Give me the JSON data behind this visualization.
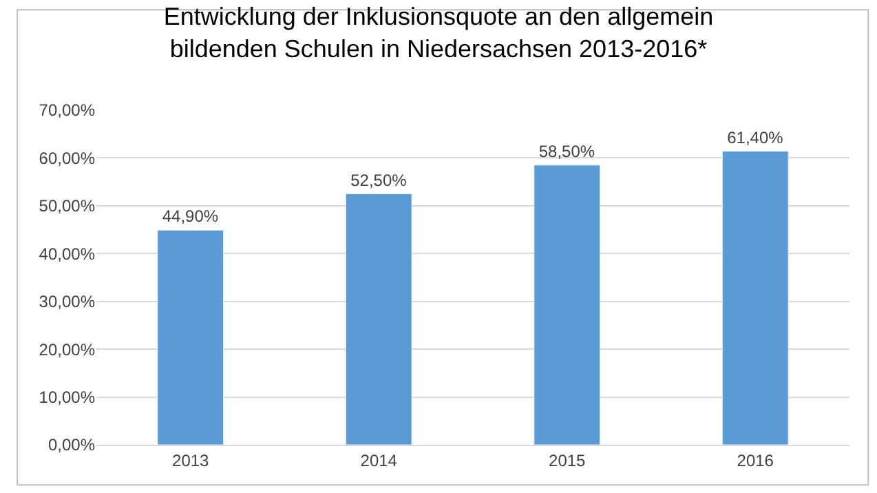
{
  "chart_data": {
    "type": "bar",
    "title": "Entwicklung der Inklusionsquote an den allgemein\nbildenden Schulen in Niedersachsen 2013-2016*",
    "categories": [
      "2013",
      "2014",
      "2015",
      "2016"
    ],
    "values": [
      44.9,
      52.5,
      58.5,
      61.4
    ],
    "value_labels": [
      "44,90%",
      "52,50%",
      "58,50%",
      "61,40%"
    ],
    "color": "#5b9bd5",
    "ylim": [
      0,
      70
    ],
    "yticks": [
      {
        "value": 0,
        "label": "0,00%"
      },
      {
        "value": 10,
        "label": "10,00%"
      },
      {
        "value": 20,
        "label": "20,00%"
      },
      {
        "value": 30,
        "label": "30,00%"
      },
      {
        "value": 40,
        "label": "40,00%"
      },
      {
        "value": 50,
        "label": "50,00%"
      },
      {
        "value": 60,
        "label": "60,00%"
      },
      {
        "value": 70,
        "label": "70,00%"
      }
    ],
    "grid": "y"
  }
}
